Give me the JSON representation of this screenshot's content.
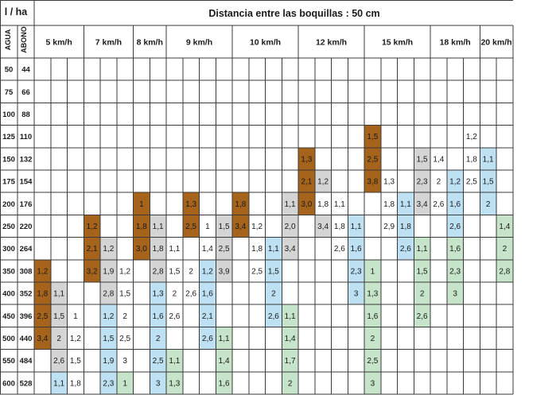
{
  "header": {
    "unit": "l / ha",
    "title": "Distancia entre las boquillas : 50 cm",
    "col_agua": "AGUA",
    "col_abono": "ABONO"
  },
  "colors": {
    "brown": "#a5631b",
    "grey": "#d4d4d4",
    "blue": "#bde0f3",
    "green": "#c5e4c9"
  },
  "speeds": [
    "5 km/h",
    "7 km/h",
    "8 km/h",
    "9 km/h",
    "10 km/h",
    "12 km/h",
    "15 km/h",
    "18 km/h",
    "20 km/h"
  ],
  "rows": [
    {
      "agua": "50",
      "abono": "44"
    },
    {
      "agua": "75",
      "abono": "66"
    },
    {
      "agua": "100",
      "abono": "88"
    },
    {
      "agua": "125",
      "abono": "110"
    },
    {
      "agua": "150",
      "abono": "132"
    },
    {
      "agua": "175",
      "abono": "154"
    },
    {
      "agua": "200",
      "abono": "176"
    },
    {
      "agua": "250",
      "abono": "220"
    },
    {
      "agua": "300",
      "abono": "264"
    },
    {
      "agua": "350",
      "abono": "308"
    },
    {
      "agua": "400",
      "abono": "352"
    },
    {
      "agua": "450",
      "abono": "396"
    },
    {
      "agua": "500",
      "abono": "440"
    },
    {
      "agua": "550",
      "abono": "484"
    },
    {
      "agua": "600",
      "abono": "528"
    }
  ],
  "cells": [
    {
      "r": 3,
      "c": 20,
      "v": "1,5",
      "color": "brown"
    },
    {
      "r": 3,
      "c": 26,
      "v": "1,2"
    },
    {
      "r": 4,
      "c": 16,
      "v": "1,3",
      "color": "brown"
    },
    {
      "r": 4,
      "c": 20,
      "v": "2,5",
      "color": "brown"
    },
    {
      "r": 4,
      "c": 23,
      "v": "1,5",
      "color": "grey"
    },
    {
      "r": 4,
      "c": 24,
      "v": "1,4"
    },
    {
      "r": 4,
      "c": 26,
      "v": "1,8"
    },
    {
      "r": 4,
      "c": 27,
      "v": "1,1",
      "color": "blue"
    },
    {
      "r": 5,
      "c": 16,
      "v": "2,1",
      "color": "brown"
    },
    {
      "r": 5,
      "c": 17,
      "v": "1,2",
      "color": "grey"
    },
    {
      "r": 5,
      "c": 20,
      "v": "3,8",
      "color": "brown"
    },
    {
      "r": 5,
      "c": 21,
      "v": "1,3"
    },
    {
      "r": 5,
      "c": 23,
      "v": "2,3",
      "color": "grey"
    },
    {
      "r": 5,
      "c": 24,
      "v": "2"
    },
    {
      "r": 5,
      "c": 25,
      "v": "1,2",
      "color": "blue"
    },
    {
      "r": 5,
      "c": 26,
      "v": "2,5"
    },
    {
      "r": 5,
      "c": 27,
      "v": "1,5",
      "color": "blue"
    },
    {
      "r": 6,
      "c": 6,
      "v": "1",
      "color": "brown"
    },
    {
      "r": 6,
      "c": 9,
      "v": "1,3",
      "color": "brown"
    },
    {
      "r": 6,
      "c": 12,
      "v": "1,8",
      "color": "brown"
    },
    {
      "r": 6,
      "c": 15,
      "v": "1,1",
      "color": "grey"
    },
    {
      "r": 6,
      "c": 16,
      "v": "3,0",
      "color": "brown"
    },
    {
      "r": 6,
      "c": 17,
      "v": "1,8"
    },
    {
      "r": 6,
      "c": 18,
      "v": "1,1"
    },
    {
      "r": 6,
      "c": 21,
      "v": "1,8"
    },
    {
      "r": 6,
      "c": 22,
      "v": "1,1",
      "color": "blue"
    },
    {
      "r": 6,
      "c": 23,
      "v": "3,4",
      "color": "grey"
    },
    {
      "r": 6,
      "c": 24,
      "v": "2,6"
    },
    {
      "r": 6,
      "c": 25,
      "v": "1,6",
      "color": "blue"
    },
    {
      "r": 6,
      "c": 27,
      "v": "2",
      "color": "blue"
    },
    {
      "r": 7,
      "c": 3,
      "v": "1,2",
      "color": "brown"
    },
    {
      "r": 7,
      "c": 6,
      "v": "1,8",
      "color": "brown"
    },
    {
      "r": 7,
      "c": 7,
      "v": "1,1",
      "color": "grey"
    },
    {
      "r": 7,
      "c": 9,
      "v": "2,5",
      "color": "brown"
    },
    {
      "r": 7,
      "c": 10,
      "v": "1"
    },
    {
      "r": 7,
      "c": 11,
      "v": "1,5",
      "color": "grey"
    },
    {
      "r": 7,
      "c": 12,
      "v": "3,4",
      "color": "brown"
    },
    {
      "r": 7,
      "c": 13,
      "v": "1,2"
    },
    {
      "r": 7,
      "c": 15,
      "v": "2,0",
      "color": "grey"
    },
    {
      "r": 7,
      "c": 17,
      "v": "3,4",
      "color": "grey"
    },
    {
      "r": 7,
      "c": 18,
      "v": "1,8"
    },
    {
      "r": 7,
      "c": 19,
      "v": "1,1",
      "color": "blue"
    },
    {
      "r": 7,
      "c": 21,
      "v": "2,9"
    },
    {
      "r": 7,
      "c": 22,
      "v": "1,8",
      "color": "blue"
    },
    {
      "r": 7,
      "c": 25,
      "v": "2,6",
      "color": "blue"
    },
    {
      "r": 7,
      "c": 28,
      "v": "1,4",
      "color": "green"
    },
    {
      "r": 8,
      "c": 3,
      "v": "2,1",
      "color": "brown"
    },
    {
      "r": 8,
      "c": 4,
      "v": "1,2",
      "color": "grey"
    },
    {
      "r": 8,
      "c": 6,
      "v": "3,0",
      "color": "brown"
    },
    {
      "r": 8,
      "c": 7,
      "v": "1,8",
      "color": "grey"
    },
    {
      "r": 8,
      "c": 8,
      "v": "1,1"
    },
    {
      "r": 8,
      "c": 10,
      "v": "1,4"
    },
    {
      "r": 8,
      "c": 11,
      "v": "2,5",
      "color": "grey"
    },
    {
      "r": 8,
      "c": 13,
      "v": "1,8"
    },
    {
      "r": 8,
      "c": 14,
      "v": "1,1",
      "color": "blue"
    },
    {
      "r": 8,
      "c": 15,
      "v": "3,4",
      "color": "grey"
    },
    {
      "r": 8,
      "c": 18,
      "v": "2,6"
    },
    {
      "r": 8,
      "c": 19,
      "v": "1,6",
      "color": "blue"
    },
    {
      "r": 8,
      "c": 22,
      "v": "2,6",
      "color": "blue"
    },
    {
      "r": 8,
      "c": 23,
      "v": "1,1",
      "color": "green"
    },
    {
      "r": 8,
      "c": 25,
      "v": "1,6",
      "color": "green"
    },
    {
      "r": 8,
      "c": 28,
      "v": "2",
      "color": "green"
    },
    {
      "r": 9,
      "c": 0,
      "v": "1,2",
      "color": "brown"
    },
    {
      "r": 9,
      "c": 3,
      "v": "3,2",
      "color": "brown"
    },
    {
      "r": 9,
      "c": 4,
      "v": "1,9",
      "color": "grey"
    },
    {
      "r": 9,
      "c": 5,
      "v": "1,2"
    },
    {
      "r": 9,
      "c": 7,
      "v": "2,8",
      "color": "grey"
    },
    {
      "r": 9,
      "c": 8,
      "v": "1,5"
    },
    {
      "r": 9,
      "c": 9,
      "v": "2"
    },
    {
      "r": 9,
      "c": 10,
      "v": "1,2",
      "color": "blue"
    },
    {
      "r": 9,
      "c": 11,
      "v": "3,9",
      "color": "grey"
    },
    {
      "r": 9,
      "c": 13,
      "v": "2,5"
    },
    {
      "r": 9,
      "c": 14,
      "v": "1,5",
      "color": "blue"
    },
    {
      "r": 9,
      "c": 19,
      "v": "2,3",
      "color": "blue"
    },
    {
      "r": 9,
      "c": 20,
      "v": "1",
      "color": "green"
    },
    {
      "r": 9,
      "c": 23,
      "v": "1,5",
      "color": "green"
    },
    {
      "r": 9,
      "c": 25,
      "v": "2,3",
      "color": "green"
    },
    {
      "r": 9,
      "c": 28,
      "v": "2,8",
      "color": "green"
    },
    {
      "r": 10,
      "c": 0,
      "v": "1,8",
      "color": "brown"
    },
    {
      "r": 10,
      "c": 1,
      "v": "1,1",
      "color": "grey"
    },
    {
      "r": 10,
      "c": 4,
      "v": "2,8",
      "color": "grey"
    },
    {
      "r": 10,
      "c": 5,
      "v": "1,5"
    },
    {
      "r": 10,
      "c": 7,
      "v": "1,3",
      "color": "blue"
    },
    {
      "r": 10,
      "c": 8,
      "v": "2"
    },
    {
      "r": 10,
      "c": 9,
      "v": "2,6"
    },
    {
      "r": 10,
      "c": 10,
      "v": "1,6",
      "color": "blue"
    },
    {
      "r": 10,
      "c": 14,
      "v": "2",
      "color": "blue"
    },
    {
      "r": 10,
      "c": 19,
      "v": "3",
      "color": "blue"
    },
    {
      "r": 10,
      "c": 20,
      "v": "1,3",
      "color": "green"
    },
    {
      "r": 10,
      "c": 23,
      "v": "2",
      "color": "green"
    },
    {
      "r": 10,
      "c": 25,
      "v": "3",
      "color": "green"
    },
    {
      "r": 11,
      "c": 0,
      "v": "2,5",
      "color": "brown"
    },
    {
      "r": 11,
      "c": 1,
      "v": "1,5",
      "color": "grey"
    },
    {
      "r": 11,
      "c": 2,
      "v": "1"
    },
    {
      "r": 11,
      "c": 4,
      "v": "1,2",
      "color": "blue"
    },
    {
      "r": 11,
      "c": 5,
      "v": "2"
    },
    {
      "r": 11,
      "c": 7,
      "v": "1,6",
      "color": "blue"
    },
    {
      "r": 11,
      "c": 8,
      "v": "2,6"
    },
    {
      "r": 11,
      "c": 10,
      "v": "2,1",
      "color": "blue"
    },
    {
      "r": 11,
      "c": 14,
      "v": "2,6",
      "color": "blue"
    },
    {
      "r": 11,
      "c": 15,
      "v": "1,1",
      "color": "green"
    },
    {
      "r": 11,
      "c": 20,
      "v": "1,6",
      "color": "green"
    },
    {
      "r": 11,
      "c": 23,
      "v": "2,6",
      "color": "green"
    },
    {
      "r": 12,
      "c": 0,
      "v": "3,4",
      "color": "brown"
    },
    {
      "r": 12,
      "c": 1,
      "v": "2",
      "color": "grey"
    },
    {
      "r": 12,
      "c": 2,
      "v": "1,2"
    },
    {
      "r": 12,
      "c": 4,
      "v": "1,5",
      "color": "blue"
    },
    {
      "r": 12,
      "c": 5,
      "v": "2,5"
    },
    {
      "r": 12,
      "c": 7,
      "v": "2",
      "color": "blue"
    },
    {
      "r": 12,
      "c": 10,
      "v": "2,6",
      "color": "blue"
    },
    {
      "r": 12,
      "c": 11,
      "v": "1,1",
      "color": "green"
    },
    {
      "r": 12,
      "c": 15,
      "v": "1,4",
      "color": "green"
    },
    {
      "r": 12,
      "c": 20,
      "v": "2",
      "color": "green"
    },
    {
      "r": 13,
      "c": 1,
      "v": "2,6",
      "color": "grey"
    },
    {
      "r": 13,
      "c": 2,
      "v": "1,5"
    },
    {
      "r": 13,
      "c": 4,
      "v": "1,9",
      "color": "blue"
    },
    {
      "r": 13,
      "c": 5,
      "v": "3"
    },
    {
      "r": 13,
      "c": 7,
      "v": "2,5",
      "color": "blue"
    },
    {
      "r": 13,
      "c": 8,
      "v": "1,1",
      "color": "green"
    },
    {
      "r": 13,
      "c": 11,
      "v": "1,4",
      "color": "green"
    },
    {
      "r": 13,
      "c": 15,
      "v": "1,7",
      "color": "green"
    },
    {
      "r": 13,
      "c": 20,
      "v": "2,5",
      "color": "green"
    },
    {
      "r": 14,
      "c": 1,
      "v": "1,1",
      "color": "blue"
    },
    {
      "r": 14,
      "c": 2,
      "v": "1,8"
    },
    {
      "r": 14,
      "c": 4,
      "v": "2,3",
      "color": "blue"
    },
    {
      "r": 14,
      "c": 5,
      "v": "1",
      "color": "green"
    },
    {
      "r": 14,
      "c": 7,
      "v": "3",
      "color": "blue"
    },
    {
      "r": 14,
      "c": 8,
      "v": "1,3",
      "color": "green"
    },
    {
      "r": 14,
      "c": 11,
      "v": "1,6",
      "color": "green"
    },
    {
      "r": 14,
      "c": 15,
      "v": "2",
      "color": "green"
    },
    {
      "r": 14,
      "c": 20,
      "v": "3",
      "color": "green"
    }
  ]
}
